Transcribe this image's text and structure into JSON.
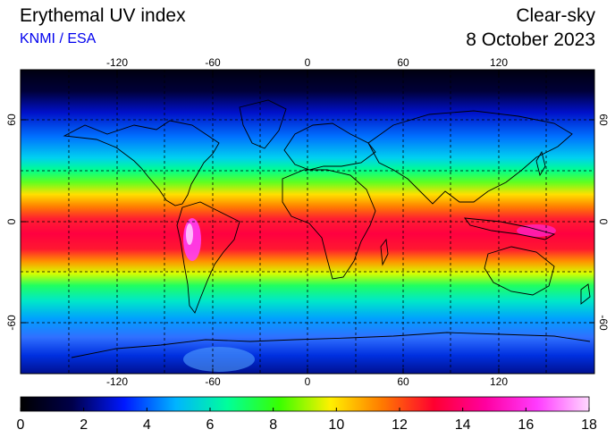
{
  "header": {
    "title": "Erythemal UV index",
    "source": "KNMI / ESA",
    "sky_condition": "Clear-sky",
    "date": "8 October 2023"
  },
  "map": {
    "projection": "equirectangular",
    "variable": "erythemal UV index",
    "longitude_ticks": [
      "-120",
      "-60",
      "0",
      "60",
      "120"
    ],
    "latitude_ticks": [
      "60",
      "0",
      "-60"
    ],
    "gridlines": true
  },
  "colorbar": {
    "min": 0,
    "max": 18,
    "tick_labels": [
      "0",
      "2",
      "4",
      "6",
      "8",
      "10",
      "12",
      "14",
      "16",
      "18"
    ],
    "colors": [
      "#000000",
      "#00004a",
      "#0018ff",
      "#00b4ff",
      "#00ff9a",
      "#38ff00",
      "#fff000",
      "#ff7a00",
      "#ff0030",
      "#ff00a0",
      "#ff3cff",
      "#ffd8ff"
    ]
  }
}
